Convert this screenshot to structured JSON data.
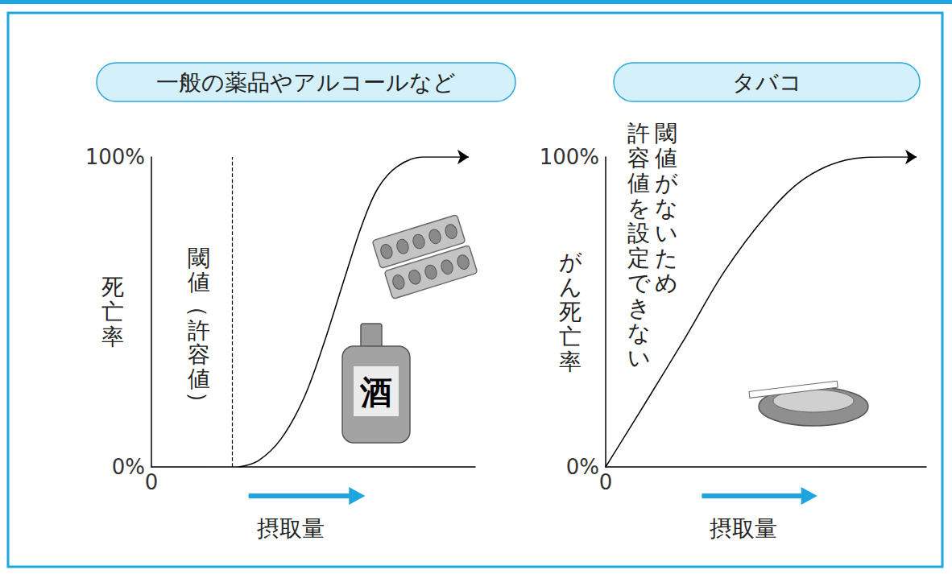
{
  "chart_data": [
    {
      "type": "line",
      "title": "一般の薬品やアルコールなど",
      "y_label": "死亡率",
      "x_label": "摂取量",
      "x": [
        27,
        33,
        40,
        47,
        53,
        60,
        65,
        70,
        76,
        84,
        98
      ],
      "values": [
        0,
        2,
        9,
        22,
        39,
        62,
        78,
        90,
        97,
        100,
        100
      ],
      "color": "#000000",
      "marker": "arrow",
      "xlim": [
        0,
        100
      ],
      "xticks": [
        0
      ],
      "ylim": [
        0,
        100
      ],
      "yticks": [
        {
          "value": 0,
          "label": "0%"
        },
        {
          "value": 100,
          "label": "100%"
        }
      ],
      "grid": false,
      "threshold": {
        "value": 25,
        "label": "閾値（許容値）"
      },
      "image_text": "酒"
    },
    {
      "type": "line",
      "title": "タバコ",
      "y_label": "がん死亡率",
      "x_label": "摂取量",
      "x": [
        0,
        12,
        25,
        37,
        50,
        62,
        75,
        87,
        97
      ],
      "values": [
        0,
        20,
        42,
        63,
        81,
        93,
        99,
        100,
        100
      ],
      "color": "#000000",
      "marker": "arrow",
      "xlim": [
        0,
        100
      ],
      "xticks": [
        0
      ],
      "ylim": [
        0,
        100
      ],
      "yticks": [
        {
          "value": 0,
          "label": "0%"
        },
        {
          "value": 100,
          "label": "100%"
        }
      ],
      "grid": false,
      "annotation": [
        "閾値がないため",
        "許容値を設定できない"
      ]
    }
  ]
}
